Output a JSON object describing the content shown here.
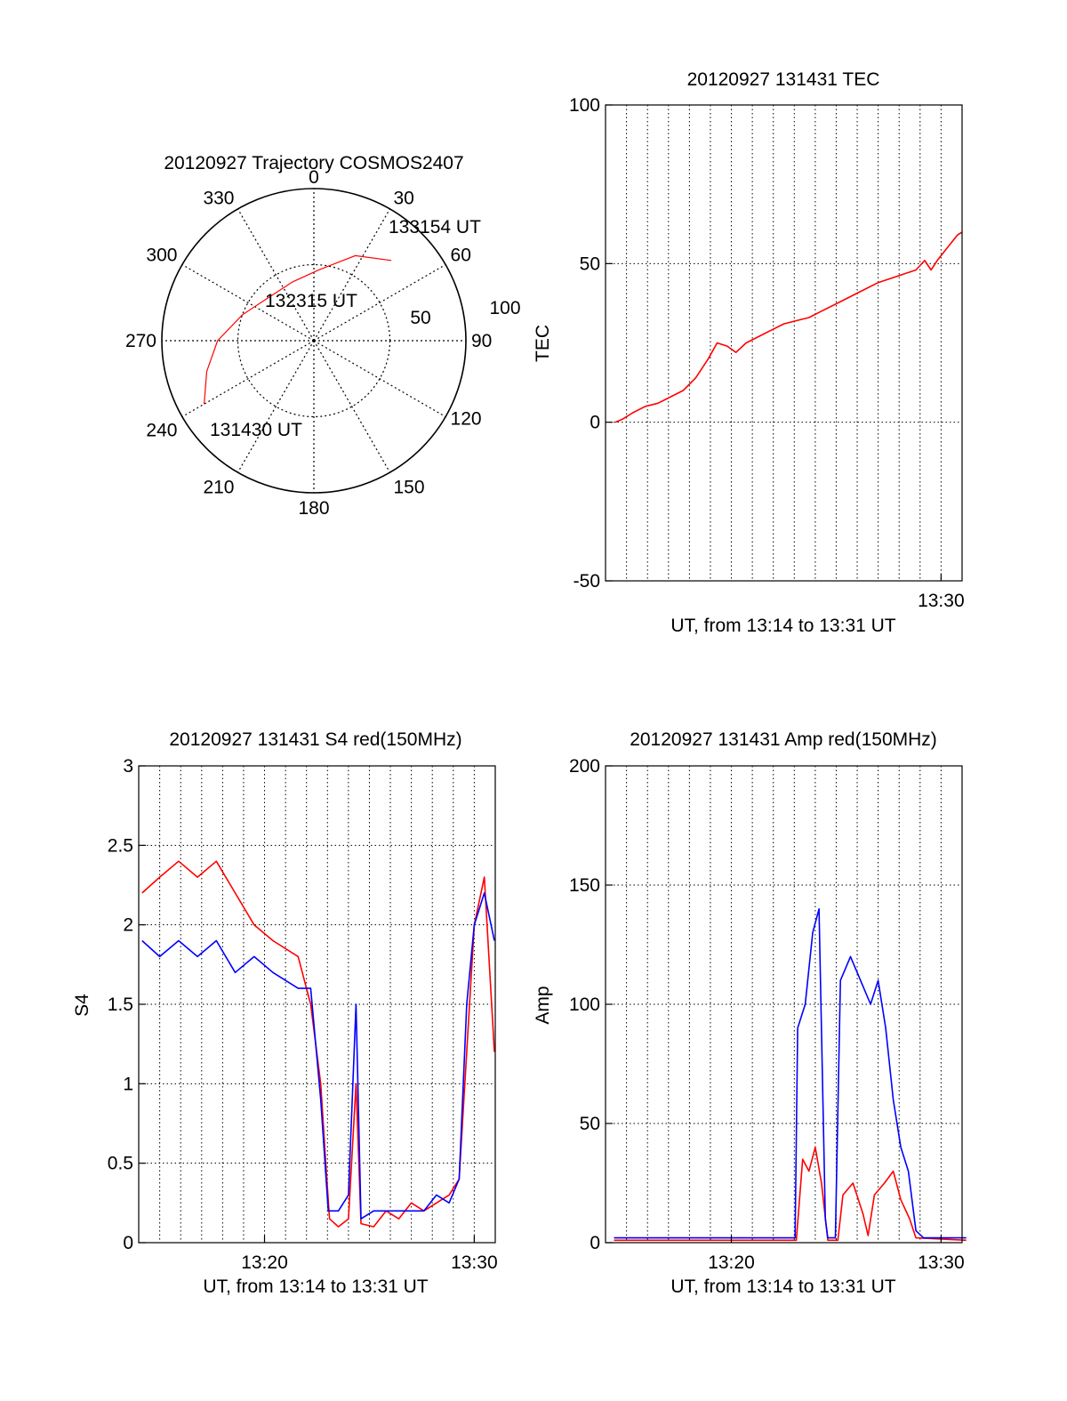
{
  "colors": {
    "red": "#ff0000",
    "blue": "#0000ff",
    "axis": "#000000",
    "grid": "#000000",
    "background": "#ffffff"
  },
  "chart_data": [
    {
      "type": "polar",
      "title": "20120927 Trajectory COSMOS2407",
      "azimuth_labels": [
        "0",
        "30",
        "60",
        "90",
        "120",
        "150",
        "180",
        "210",
        "240",
        "270",
        "300",
        "330"
      ],
      "radial_labels": [
        "50",
        "100"
      ],
      "radial_range": [
        0,
        90
      ],
      "grid": true,
      "trajectory": {
        "color": "#ff0000",
        "points": [
          {
            "az": 240,
            "r": 75
          },
          {
            "az": 254,
            "r": 66
          },
          {
            "az": 270,
            "r": 57
          },
          {
            "az": 290,
            "r": 45
          },
          {
            "az": 314,
            "r": 37
          },
          {
            "az": 340,
            "r": 37
          },
          {
            "az": 4,
            "r": 42
          },
          {
            "az": 26,
            "r": 56
          },
          {
            "az": 44,
            "r": 66
          }
        ]
      },
      "annotations": [
        "133154 UT",
        "132315 UT",
        "131430 UT"
      ]
    },
    {
      "type": "line",
      "title": "20120927 131431 TEC",
      "xlabel": "UT, from 13:14 to 13:31 UT",
      "ylabel": "TEC",
      "xlim": [
        13.2333,
        13.5167
      ],
      "ylim": [
        -50,
        100
      ],
      "yticks": [
        -50,
        0,
        50,
        100
      ],
      "xticks": [
        {
          "value": 13.5,
          "label": "13:30"
        }
      ],
      "grid": true,
      "series": [
        {
          "color": "#ff0000",
          "points": [
            [
              13.241,
              0
            ],
            [
              13.247,
              1
            ],
            [
              13.255,
              3
            ],
            [
              13.265,
              5
            ],
            [
              13.275,
              6
            ],
            [
              13.285,
              8
            ],
            [
              13.295,
              10
            ],
            [
              13.305,
              14
            ],
            [
              13.315,
              20
            ],
            [
              13.322,
              25
            ],
            [
              13.33,
              24
            ],
            [
              13.337,
              22
            ],
            [
              13.345,
              25
            ],
            [
              13.355,
              27
            ],
            [
              13.365,
              29
            ],
            [
              13.375,
              31
            ],
            [
              13.385,
              32
            ],
            [
              13.395,
              33
            ],
            [
              13.405,
              35
            ],
            [
              13.42,
              38
            ],
            [
              13.435,
              41
            ],
            [
              13.45,
              44
            ],
            [
              13.465,
              46
            ],
            [
              13.48,
              48
            ],
            [
              13.487,
              51
            ],
            [
              13.492,
              48
            ],
            [
              13.497,
              51
            ],
            [
              13.505,
              55
            ],
            [
              13.513,
              59
            ],
            [
              13.517,
              60
            ]
          ]
        }
      ]
    },
    {
      "type": "line",
      "title": "20120927 131431 S4 red(150MHz)",
      "xlabel": "UT, from 13:14 to 13:31 UT",
      "ylabel": "S4",
      "xlim": [
        13.2333,
        13.5167
      ],
      "ylim": [
        0,
        3
      ],
      "yticks": [
        0,
        0.5,
        1,
        1.5,
        2,
        2.5,
        3
      ],
      "xticks": [
        {
          "value": 13.3333,
          "label": "13:20"
        },
        {
          "value": 13.5,
          "label": "13:30"
        }
      ],
      "grid": true,
      "series": [
        {
          "color": "#ff0000",
          "points": [
            [
              13.236,
              2.2
            ],
            [
              13.25,
              2.3
            ],
            [
              13.265,
              2.4
            ],
            [
              13.28,
              2.3
            ],
            [
              13.295,
              2.4
            ],
            [
              13.31,
              2.2
            ],
            [
              13.325,
              2.0
            ],
            [
              13.34,
              1.9
            ],
            [
              13.36,
              1.8
            ],
            [
              13.37,
              1.5
            ],
            [
              13.378,
              1.0
            ],
            [
              13.382,
              0.5
            ],
            [
              13.385,
              0.15
            ],
            [
              13.392,
              0.1
            ],
            [
              13.4,
              0.15
            ],
            [
              13.406,
              1.0
            ],
            [
              13.41,
              0.12
            ],
            [
              13.42,
              0.1
            ],
            [
              13.43,
              0.2
            ],
            [
              13.44,
              0.15
            ],
            [
              13.45,
              0.25
            ],
            [
              13.46,
              0.2
            ],
            [
              13.47,
              0.25
            ],
            [
              13.48,
              0.3
            ],
            [
              13.488,
              0.4
            ],
            [
              13.494,
              1.2
            ],
            [
              13.5,
              2.0
            ],
            [
              13.508,
              2.3
            ],
            [
              13.516,
              1.2
            ]
          ]
        },
        {
          "color": "#0000ff",
          "points": [
            [
              13.236,
              1.9
            ],
            [
              13.25,
              1.8
            ],
            [
              13.265,
              1.9
            ],
            [
              13.28,
              1.8
            ],
            [
              13.295,
              1.9
            ],
            [
              13.31,
              1.7
            ],
            [
              13.325,
              1.8
            ],
            [
              13.34,
              1.7
            ],
            [
              13.36,
              1.6
            ],
            [
              13.37,
              1.6
            ],
            [
              13.378,
              0.9
            ],
            [
              13.384,
              0.2
            ],
            [
              13.392,
              0.2
            ],
            [
              13.4,
              0.3
            ],
            [
              13.406,
              1.5
            ],
            [
              13.41,
              0.15
            ],
            [
              13.42,
              0.2
            ],
            [
              13.43,
              0.2
            ],
            [
              13.44,
              0.2
            ],
            [
              13.45,
              0.2
            ],
            [
              13.46,
              0.2
            ],
            [
              13.47,
              0.3
            ],
            [
              13.48,
              0.25
            ],
            [
              13.488,
              0.4
            ],
            [
              13.494,
              1.5
            ],
            [
              13.5,
              2.0
            ],
            [
              13.508,
              2.2
            ],
            [
              13.516,
              1.9
            ]
          ]
        }
      ]
    },
    {
      "type": "line",
      "title": "20120927 131431 Amp red(150MHz)",
      "xlabel": "UT, from 13:14 to 13:31 UT",
      "ylabel": "Amp",
      "xlim": [
        13.2333,
        13.5167
      ],
      "ylim": [
        0,
        200
      ],
      "yticks": [
        0,
        50,
        100,
        150,
        200
      ],
      "xticks": [
        {
          "value": 13.3333,
          "label": "13:20"
        },
        {
          "value": 13.5,
          "label": "13:30"
        }
      ],
      "grid": true,
      "series": [
        {
          "color": "#ff0000",
          "points": [
            [
              13.24,
              1
            ],
            [
              13.3,
              1
            ],
            [
              13.385,
              1
            ],
            [
              13.39,
              35
            ],
            [
              13.395,
              30
            ],
            [
              13.4,
              40
            ],
            [
              13.405,
              25
            ],
            [
              13.41,
              1
            ],
            [
              13.418,
              1
            ],
            [
              13.422,
              20
            ],
            [
              13.43,
              25
            ],
            [
              13.438,
              12
            ],
            [
              13.442,
              3
            ],
            [
              13.447,
              20
            ],
            [
              13.455,
              25
            ],
            [
              13.462,
              30
            ],
            [
              13.468,
              18
            ],
            [
              13.475,
              10
            ],
            [
              13.48,
              2
            ],
            [
              13.52,
              1
            ]
          ]
        },
        {
          "color": "#0000ff",
          "points": [
            [
              13.24,
              2
            ],
            [
              13.3,
              2
            ],
            [
              13.384,
              2
            ],
            [
              13.386,
              90
            ],
            [
              13.392,
              100
            ],
            [
              13.398,
              130
            ],
            [
              13.403,
              140
            ],
            [
              13.408,
              10
            ],
            [
              13.41,
              2
            ],
            [
              13.416,
              2
            ],
            [
              13.42,
              110
            ],
            [
              13.428,
              120
            ],
            [
              13.436,
              110
            ],
            [
              13.444,
              100
            ],
            [
              13.45,
              110
            ],
            [
              13.456,
              90
            ],
            [
              13.462,
              60
            ],
            [
              13.468,
              40
            ],
            [
              13.474,
              30
            ],
            [
              13.48,
              5
            ],
            [
              13.486,
              2
            ],
            [
              13.52,
              2
            ]
          ]
        }
      ]
    }
  ]
}
